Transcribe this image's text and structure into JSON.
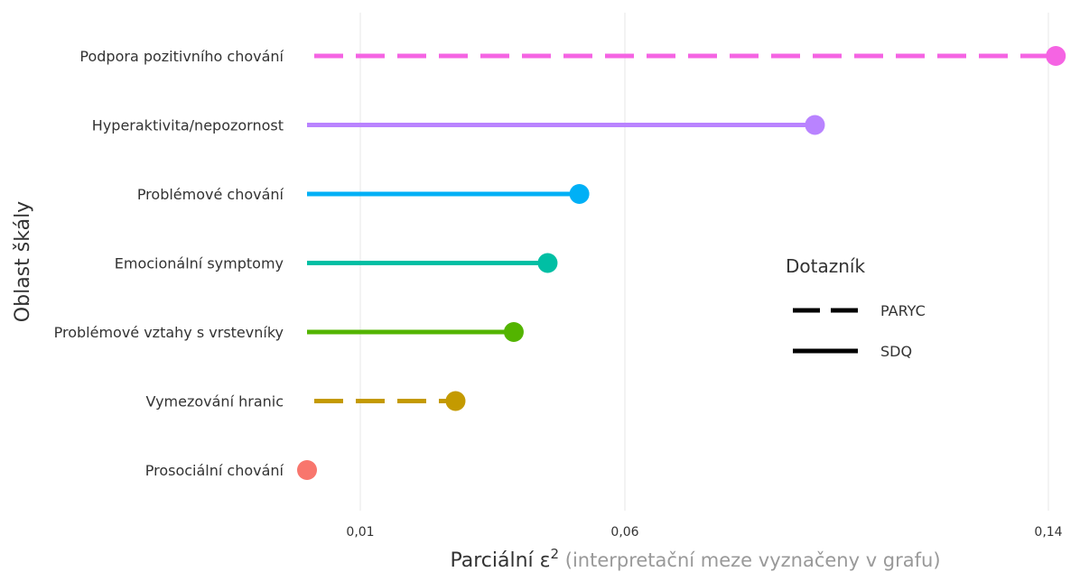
{
  "chart_data": {
    "type": "lollipop",
    "ylabel": "Oblast škály",
    "xlabel": {
      "main": "Parciální ε",
      "sup": "2",
      "sub": " (interpretační meze vyznačeny v grafu)"
    },
    "x_ticks": [
      {
        "value": 0.01,
        "label": "0,01"
      },
      {
        "value": 0.06,
        "label": "0,06"
      },
      {
        "value": 0.14,
        "label": "0,14"
      }
    ],
    "xlim": [
      0.0,
      0.14
    ],
    "categories": [
      "Podpora pozitivního chování",
      "Hyperaktivita/nepozornost",
      "Problémové chování",
      "Emocionální symptomy",
      "Problémové vztahy s vrstevníky",
      "Vymezování hranic",
      "Prosociální chování"
    ],
    "points": [
      {
        "category": "Podpora pozitivního chování",
        "questionnaire": "PARYC",
        "value": 0.1414,
        "color": "#F564E3"
      },
      {
        "category": "Hyperaktivita/nepozornost",
        "questionnaire": "SDQ",
        "value": 0.0959,
        "color": "#B983FF"
      },
      {
        "category": "Problémové chování",
        "questionnaire": "SDQ",
        "value": 0.0514,
        "color": "#00B0F6"
      },
      {
        "category": "Emocionální symptomy",
        "questionnaire": "SDQ",
        "value": 0.0454,
        "color": "#00BFA4"
      },
      {
        "category": "Problémové vztahy s vrstevníky",
        "questionnaire": "SDQ",
        "value": 0.039,
        "color": "#53B400"
      },
      {
        "category": "Vymezování hranic",
        "questionnaire": "PARYC",
        "value": 0.028,
        "color": "#C49A00"
      },
      {
        "category": "Prosociální chování",
        "questionnaire": "SDQ",
        "value": 0.0,
        "color": "#F8766D"
      }
    ],
    "legend": {
      "title": "Dotazník",
      "entries": [
        {
          "label": "PARYC",
          "linetype": "dashed"
        },
        {
          "label": "SDQ",
          "linetype": "solid"
        }
      ]
    },
    "grid": "vertical-major"
  }
}
